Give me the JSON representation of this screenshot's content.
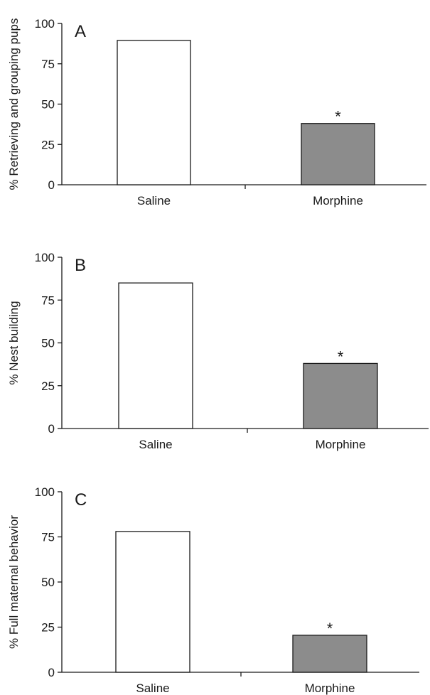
{
  "chart_data": [
    {
      "type": "bar",
      "panel": "A",
      "categories": [
        "Saline",
        "Morphine"
      ],
      "values": [
        89.5,
        38
      ],
      "colors": [
        "#ffffff",
        "#8c8c8c"
      ],
      "significance": [
        "",
        "*"
      ],
      "ylabel": "% Retrieving and grouping pups",
      "yticks": [
        0,
        25,
        50,
        75,
        100
      ],
      "ylim": [
        0,
        100
      ]
    },
    {
      "type": "bar",
      "panel": "B",
      "categories": [
        "Saline",
        "Morphine"
      ],
      "values": [
        85,
        38
      ],
      "colors": [
        "#ffffff",
        "#8c8c8c"
      ],
      "significance": [
        "",
        "*"
      ],
      "ylabel": "% Nest building",
      "yticks": [
        0,
        25,
        50,
        75,
        100
      ],
      "ylim": [
        0,
        100
      ]
    },
    {
      "type": "bar",
      "panel": "C",
      "categories": [
        "Saline",
        "Morphine"
      ],
      "values": [
        78,
        20.5
      ],
      "colors": [
        "#ffffff",
        "#8c8c8c"
      ],
      "significance": [
        "",
        "*"
      ],
      "ylabel": "% Full maternal behavior",
      "yticks": [
        0,
        25,
        50,
        75,
        100
      ],
      "ylim": [
        0,
        100
      ]
    }
  ]
}
